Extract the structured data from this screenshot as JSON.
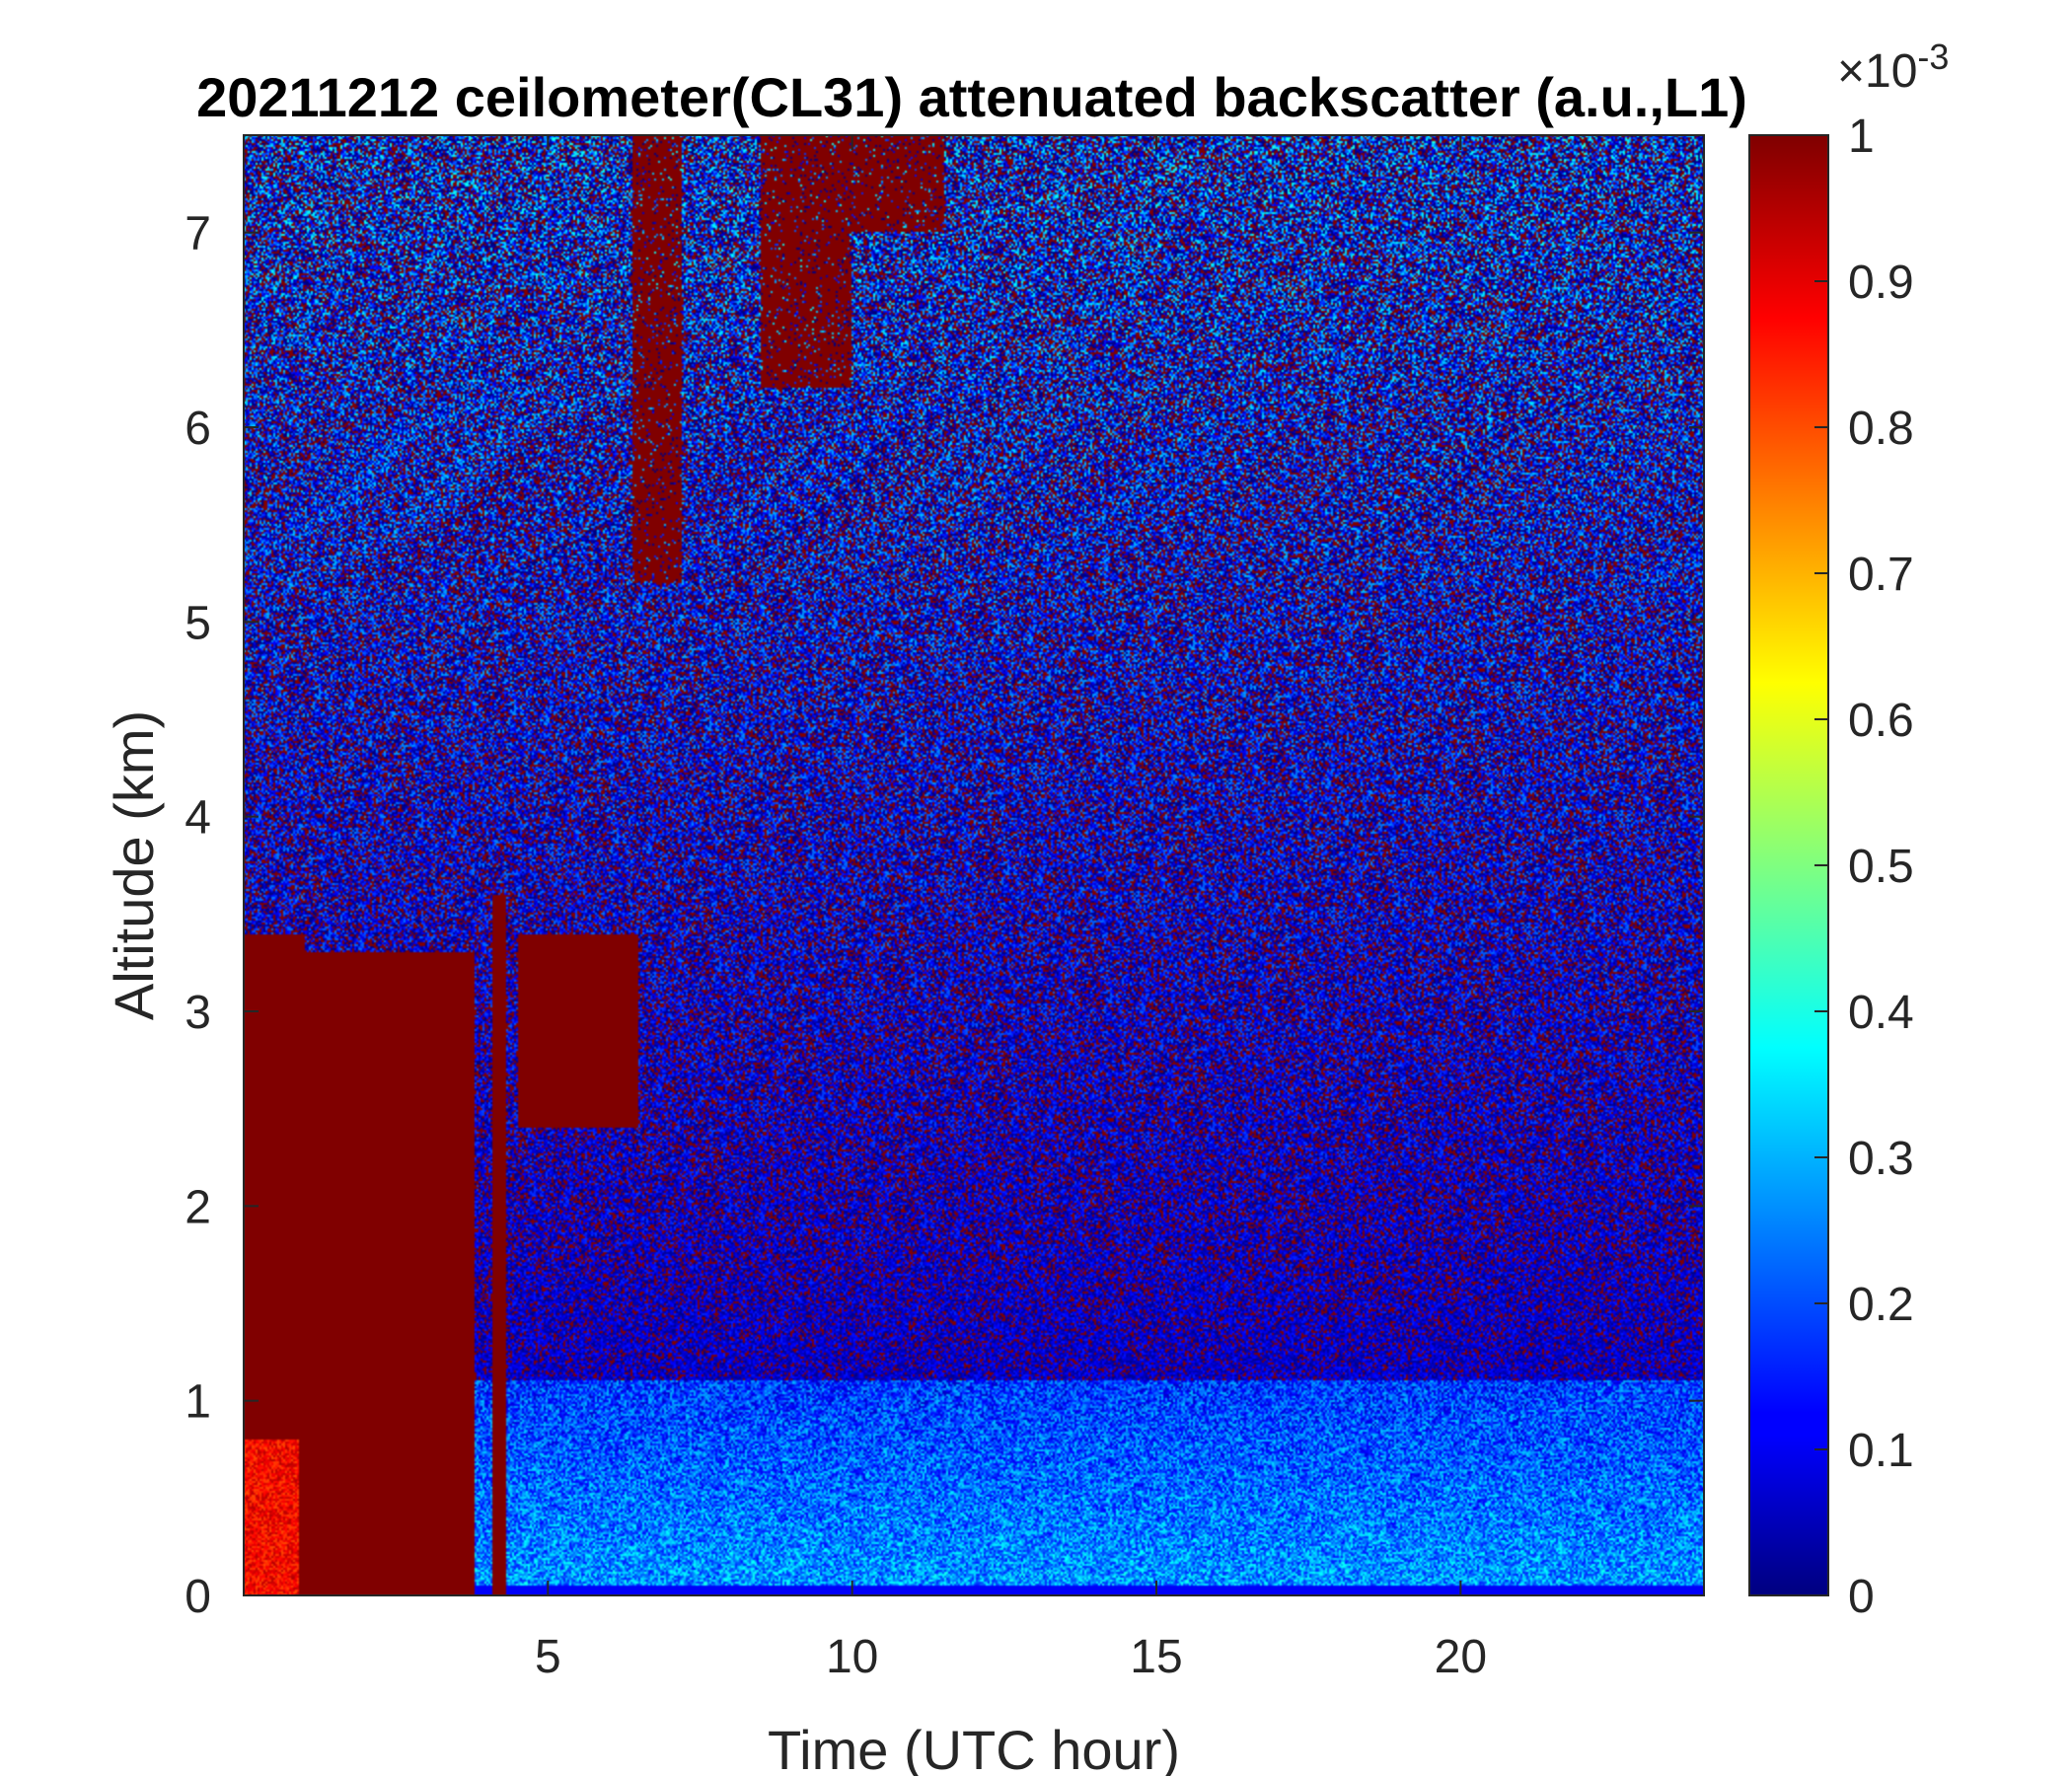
{
  "chart_data": {
    "type": "heatmap",
    "title": "20211212 ceilometer(CL31) attenuated backscatter (a.u.,L1)",
    "xlabel": "Time (UTC hour)",
    "ylabel": "Altitude (km)",
    "xlim": [
      0,
      24
    ],
    "ylim": [
      0,
      7.5
    ],
    "xticks": [
      5,
      10,
      15,
      20
    ],
    "yticks": [
      0,
      1,
      2,
      3,
      4,
      5,
      6,
      7
    ],
    "colorbar": {
      "colormap": "jet",
      "range": [
        0,
        0.001
      ],
      "ticks": [
        0,
        0.1,
        0.2,
        0.3,
        0.4,
        0.5,
        0.6,
        0.7,
        0.8,
        0.9,
        1
      ],
      "multiplier_base": "×10",
      "multiplier_exponent": "-3"
    },
    "features": {
      "thick_cloud_layers": [
        {
          "t_start": 0.0,
          "t_end": 1.0,
          "alt_bottom": 0.0,
          "alt_top": 3.4
        },
        {
          "t_start": 1.0,
          "t_end": 3.8,
          "alt_bottom": 0.0,
          "alt_top": 3.3
        },
        {
          "t_start": 4.1,
          "t_end": 4.3,
          "alt_bottom": 0.0,
          "alt_top": 3.6
        },
        {
          "t_start": 4.5,
          "t_end": 6.5,
          "alt_bottom": 2.4,
          "alt_top": 3.4
        }
      ],
      "high_cloud_streaks": [
        {
          "t_start": 6.4,
          "t_end": 7.2,
          "alt_bottom": 5.2,
          "alt_top": 7.5
        },
        {
          "t_start": 8.5,
          "t_end": 10.0,
          "alt_bottom": 6.2,
          "alt_top": 7.5
        },
        {
          "t_start": 10.0,
          "t_end": 11.5,
          "alt_bottom": 7.0,
          "alt_top": 7.5
        }
      ],
      "boundary_layer_top_km": 1.1,
      "background_level": 0.05
    }
  }
}
